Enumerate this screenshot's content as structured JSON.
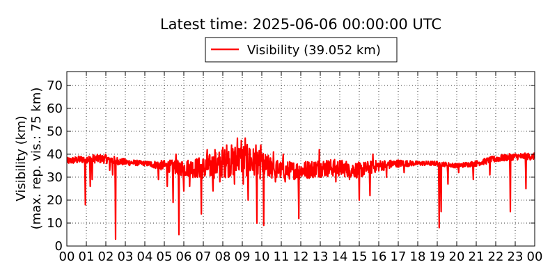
{
  "chart_data": {
    "type": "line",
    "title": "Latest time: 2025-06-06 00:00:00 UTC",
    "ylabel_line1": "Visibility (km)",
    "ylabel_line2": "(max. rep. vis.: 75 km)",
    "xlabel": "",
    "ylim": [
      0,
      76
    ],
    "yticks": [
      0,
      10,
      20,
      30,
      40,
      50,
      60,
      70
    ],
    "xlim": [
      0,
      24
    ],
    "xtick_labels": [
      "00",
      "01",
      "02",
      "03",
      "04",
      "05",
      "06",
      "07",
      "08",
      "09",
      "10",
      "11",
      "12",
      "13",
      "14",
      "15",
      "16",
      "17",
      "18",
      "19",
      "20",
      "21",
      "22",
      "23",
      "00"
    ],
    "grid": true,
    "legend_position": "top-center",
    "series": [
      {
        "name": "Visibility (39.052 km)",
        "color": "#ff0000",
        "baseline": [
          {
            "h": 0.0,
            "v": 37
          },
          {
            "h": 1.0,
            "v": 38
          },
          {
            "h": 2.0,
            "v": 38
          },
          {
            "h": 3.0,
            "v": 36.5
          },
          {
            "h": 4.0,
            "v": 36
          },
          {
            "h": 5.0,
            "v": 35
          },
          {
            "h": 6.0,
            "v": 34
          },
          {
            "h": 7.0,
            "v": 34
          },
          {
            "h": 8.0,
            "v": 36
          },
          {
            "h": 9.0,
            "v": 38
          },
          {
            "h": 10.0,
            "v": 35
          },
          {
            "h": 11.0,
            "v": 33
          },
          {
            "h": 12.0,
            "v": 33
          },
          {
            "h": 13.0,
            "v": 34
          },
          {
            "h": 14.0,
            "v": 34
          },
          {
            "h": 15.0,
            "v": 33
          },
          {
            "h": 16.0,
            "v": 35
          },
          {
            "h": 17.0,
            "v": 36
          },
          {
            "h": 18.0,
            "v": 36
          },
          {
            "h": 19.0,
            "v": 36
          },
          {
            "h": 20.0,
            "v": 35
          },
          {
            "h": 21.0,
            "v": 36
          },
          {
            "h": 22.0,
            "v": 38
          },
          {
            "h": 23.0,
            "v": 39
          },
          {
            "h": 24.0,
            "v": 39
          }
        ],
        "spread": [
          {
            "h": 0.0,
            "a": 1.5
          },
          {
            "h": 2.0,
            "a": 2
          },
          {
            "h": 4.0,
            "a": 1
          },
          {
            "h": 5.5,
            "a": 3
          },
          {
            "h": 7.0,
            "a": 5
          },
          {
            "h": 8.5,
            "a": 7
          },
          {
            "h": 9.5,
            "a": 7
          },
          {
            "h": 11.0,
            "a": 4
          },
          {
            "h": 13.0,
            "a": 4
          },
          {
            "h": 15.0,
            "a": 3.5
          },
          {
            "h": 16.5,
            "a": 2
          },
          {
            "h": 18.0,
            "a": 1
          },
          {
            "h": 20.0,
            "a": 1
          },
          {
            "h": 22.0,
            "a": 1.5
          },
          {
            "h": 24.0,
            "a": 1.5
          }
        ],
        "dips": [
          {
            "h": 0.95,
            "v": 18
          },
          {
            "h": 1.2,
            "v": 26
          },
          {
            "h": 1.3,
            "v": 29
          },
          {
            "h": 2.2,
            "v": 33
          },
          {
            "h": 2.35,
            "v": 31
          },
          {
            "h": 2.5,
            "v": 3
          },
          {
            "h": 4.7,
            "v": 29
          },
          {
            "h": 5.15,
            "v": 26
          },
          {
            "h": 5.45,
            "v": 19
          },
          {
            "h": 5.75,
            "v": 5
          },
          {
            "h": 6.0,
            "v": 24
          },
          {
            "h": 6.3,
            "v": 26
          },
          {
            "h": 6.9,
            "v": 14
          },
          {
            "h": 7.1,
            "v": 31
          },
          {
            "h": 7.5,
            "v": 24
          },
          {
            "h": 7.85,
            "v": 28
          },
          {
            "h": 8.6,
            "v": 27
          },
          {
            "h": 9.05,
            "v": 27
          },
          {
            "h": 9.3,
            "v": 20
          },
          {
            "h": 9.75,
            "v": 10
          },
          {
            "h": 10.1,
            "v": 9
          },
          {
            "h": 10.7,
            "v": 28
          },
          {
            "h": 11.2,
            "v": 28
          },
          {
            "h": 11.9,
            "v": 12
          },
          {
            "h": 12.3,
            "v": 30
          },
          {
            "h": 12.95,
            "v": 6
          },
          {
            "h": 13.8,
            "v": 28
          },
          {
            "h": 14.5,
            "v": 29
          },
          {
            "h": 15.0,
            "v": 20
          },
          {
            "h": 15.55,
            "v": 22
          },
          {
            "h": 16.4,
            "v": 30
          },
          {
            "h": 17.3,
            "v": 32
          },
          {
            "h": 19.1,
            "v": 8
          },
          {
            "h": 19.2,
            "v": 15
          },
          {
            "h": 19.55,
            "v": 27
          },
          {
            "h": 20.1,
            "v": 32
          },
          {
            "h": 20.85,
            "v": 29
          },
          {
            "h": 21.7,
            "v": 31
          },
          {
            "h": 22.75,
            "v": 15
          },
          {
            "h": 23.55,
            "v": 25
          }
        ],
        "peaks": [
          {
            "h": 7.2,
            "v": 42
          },
          {
            "h": 7.6,
            "v": 42
          },
          {
            "h": 8.0,
            "v": 43
          },
          {
            "h": 8.2,
            "v": 44
          },
          {
            "h": 8.45,
            "v": 44
          },
          {
            "h": 8.75,
            "v": 47
          },
          {
            "h": 8.95,
            "v": 46
          },
          {
            "h": 9.15,
            "v": 47
          },
          {
            "h": 9.4,
            "v": 42
          },
          {
            "h": 9.7,
            "v": 44
          },
          {
            "h": 9.95,
            "v": 44
          },
          {
            "h": 10.6,
            "v": 41
          },
          {
            "h": 11.1,
            "v": 40
          },
          {
            "h": 12.95,
            "v": 42
          },
          {
            "h": 15.7,
            "v": 40
          },
          {
            "h": 5.6,
            "v": 40
          }
        ],
        "last_value": 39.052
      }
    ]
  }
}
